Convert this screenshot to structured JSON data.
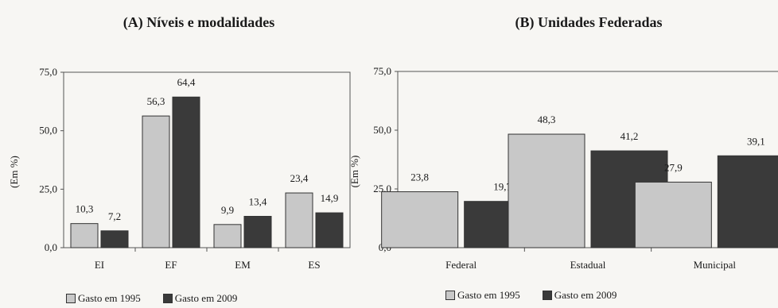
{
  "colors": {
    "s1995": "#c8c8c8",
    "s2009": "#3a3a3a"
  },
  "chart_data": [
    {
      "type": "bar",
      "title": "(A) Níveis e modalidades",
      "ylabel": "(Em %)",
      "ylim": [
        0,
        75
      ],
      "yticks": [
        "0,0",
        "25,0",
        "50,0",
        "75,0"
      ],
      "categories": [
        "EI",
        "EF",
        "EM",
        "ES"
      ],
      "series": [
        {
          "name": "Gasto em 1995",
          "values": [
            10.3,
            56.3,
            9.9,
            23.4
          ],
          "labels": [
            "10,3",
            "56,3",
            "9,9",
            "23,4"
          ]
        },
        {
          "name": "Gasto em 2009",
          "values": [
            7.2,
            64.4,
            13.4,
            14.9
          ],
          "labels": [
            "7,2",
            "64,4",
            "13,4",
            "14,9"
          ]
        }
      ]
    },
    {
      "type": "bar",
      "title": "(B) Unidades Federadas",
      "ylabel": "(Em %)",
      "ylim": [
        0,
        75
      ],
      "yticks": [
        "0,0",
        "25,0",
        "50,0",
        "75,0"
      ],
      "categories": [
        "Federal",
        "Estadual",
        "Municipal"
      ],
      "series": [
        {
          "name": "Gasto em 1995",
          "values": [
            23.8,
            48.3,
            27.9
          ],
          "labels": [
            "23,8",
            "48,3",
            "27,9"
          ]
        },
        {
          "name": "Gasto em 2009",
          "values": [
            19.7,
            41.2,
            39.1
          ],
          "labels": [
            "19,7",
            "41,2",
            "39,1"
          ]
        }
      ]
    }
  ]
}
